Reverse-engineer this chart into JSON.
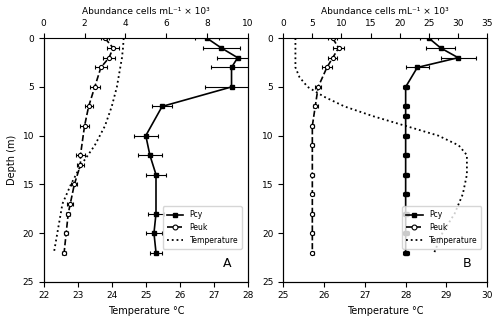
{
  "panel_A": {
    "label": "A",
    "temp_xlim": [
      22,
      28
    ],
    "temp_xticks": [
      22,
      23,
      24,
      25,
      26,
      27,
      28
    ],
    "abund_xlim": [
      0,
      10
    ],
    "abund_xticks": [
      0,
      2,
      4,
      6,
      8,
      10
    ],
    "depth_ylim": [
      0,
      25
    ],
    "depth_yticks": [
      0,
      5,
      10,
      15,
      20,
      25
    ],
    "temp_xlabel": "Temperature °C",
    "abund_xlabel": "Abundance cells mL⁻¹ × 10³",
    "ylabel": "Depth (m)",
    "pcy_depth": [
      0,
      1,
      2,
      3,
      5,
      7,
      10,
      12,
      14,
      18,
      20,
      22
    ],
    "pcy_values": [
      8.0,
      8.7,
      9.5,
      9.2,
      9.2,
      5.8,
      5.0,
      5.2,
      5.5,
      5.5,
      5.4,
      5.5
    ],
    "pcy_xerr": [
      0.6,
      0.9,
      1.0,
      1.0,
      1.3,
      0.5,
      0.6,
      0.6,
      0.5,
      0.4,
      0.4,
      0.3
    ],
    "peuk_depth": [
      0,
      1,
      2,
      3,
      5,
      7,
      9,
      12,
      13,
      15,
      17,
      18,
      20,
      22
    ],
    "peuk_values": [
      3.0,
      3.4,
      3.2,
      2.8,
      2.5,
      2.2,
      2.0,
      1.8,
      1.8,
      1.5,
      1.3,
      1.2,
      1.1,
      1.0
    ],
    "peuk_xerr": [
      0.2,
      0.3,
      0.3,
      0.3,
      0.25,
      0.2,
      0.2,
      0.2,
      0.15,
      0.15,
      0.15,
      0.1,
      0.1,
      0.1
    ],
    "temp_depth": [
      0,
      1,
      2,
      3,
      5,
      7,
      9,
      11,
      13,
      15,
      17,
      19,
      21,
      22
    ],
    "temp_values": [
      24.35,
      24.33,
      24.3,
      24.25,
      24.15,
      24.0,
      23.8,
      23.5,
      23.1,
      22.8,
      22.55,
      22.45,
      22.35,
      22.3
    ]
  },
  "panel_B": {
    "label": "B",
    "temp_xlim": [
      25,
      30
    ],
    "temp_xticks": [
      25,
      26,
      27,
      28,
      29,
      30
    ],
    "abund_xlim": [
      0,
      35
    ],
    "abund_xticks": [
      0,
      5,
      10,
      15,
      20,
      25,
      30,
      35
    ],
    "depth_ylim": [
      0,
      25
    ],
    "depth_yticks": [
      0,
      5,
      10,
      15,
      20,
      25
    ],
    "temp_xlabel": "Temperature °C",
    "abund_xlabel": "Abundance cells mL⁻¹ × 10³",
    "ylabel": "Depth (m)",
    "pcy_depth": [
      0,
      1,
      2,
      3,
      5,
      7,
      8,
      10,
      12,
      14,
      16,
      18,
      20,
      22
    ],
    "pcy_values": [
      25.0,
      27.0,
      30.0,
      23.0,
      21.0,
      21.0,
      21.0,
      21.0,
      21.0,
      21.0,
      21.0,
      21.0,
      21.0,
      21.0
    ],
    "pcy_xerr": [
      1.5,
      2.5,
      3.0,
      2.0,
      0.5,
      0.5,
      0.5,
      0.5,
      0.5,
      0.5,
      0.5,
      0.5,
      0.5,
      0.5
    ],
    "peuk_depth": [
      0,
      1,
      2,
      3,
      5,
      7,
      9,
      11,
      14,
      16,
      18,
      20,
      22
    ],
    "peuk_values": [
      8.5,
      9.5,
      8.5,
      7.5,
      6.0,
      5.5,
      5.0,
      5.0,
      5.0,
      5.0,
      5.0,
      5.0,
      5.0
    ],
    "peuk_xerr": [
      0.8,
      1.0,
      0.8,
      0.8,
      0.5,
      0.4,
      0.3,
      0.3,
      0.3,
      0.3,
      0.3,
      0.3,
      0.3
    ],
    "temp_depth": [
      0,
      1,
      2,
      3,
      4,
      5,
      6,
      7,
      8,
      9,
      10,
      11,
      12,
      14,
      16,
      18,
      20,
      21,
      22
    ],
    "temp_values": [
      25.3,
      25.3,
      25.3,
      25.3,
      25.4,
      25.6,
      26.0,
      26.5,
      27.2,
      28.0,
      28.8,
      29.3,
      29.5,
      29.5,
      29.4,
      29.2,
      28.9,
      28.8,
      28.7
    ]
  }
}
